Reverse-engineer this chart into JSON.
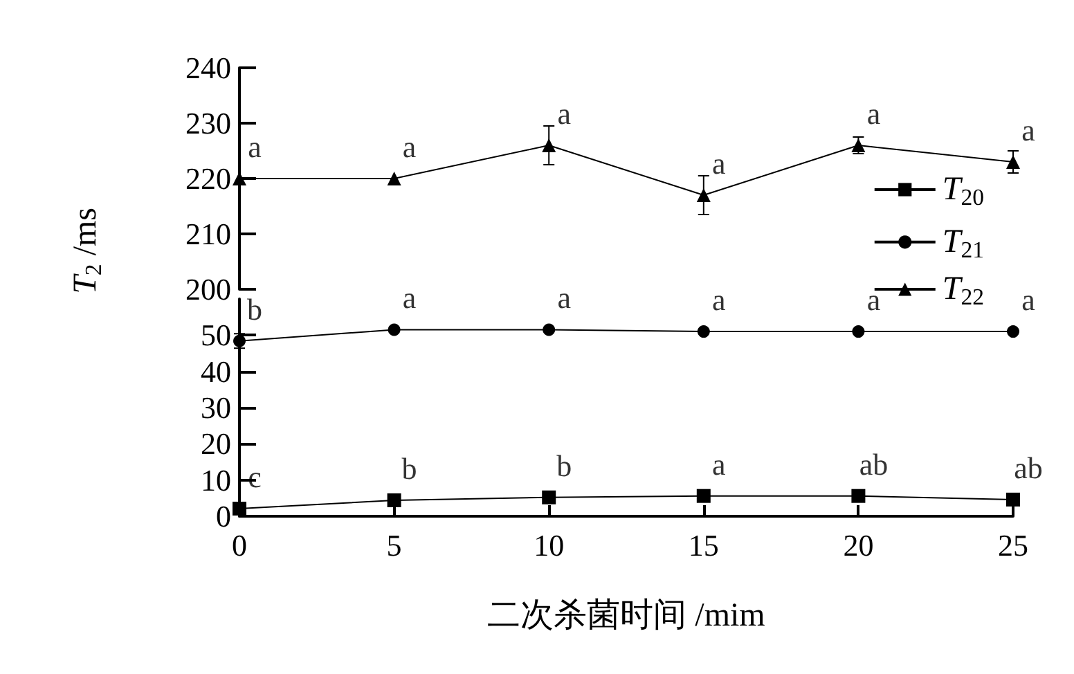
{
  "chart_data": [
    {
      "type": "line",
      "ylabel": "T$_{2}$ /ms",
      "x": [
        0,
        5,
        10,
        15,
        20,
        25
      ],
      "xlim": [
        0,
        25
      ],
      "ylim": [
        200,
        240
      ],
      "yticks": [
        200,
        210,
        220,
        230,
        240
      ],
      "tick_labels": "y",
      "legend": "right",
      "grid": false,
      "series": [
        {
          "name": "T$_{22}$",
          "color": "#000000",
          "marker": "triangle",
          "values": [
            220,
            220,
            226,
            217,
            226,
            223
          ],
          "errors": [
            null,
            null,
            3.5,
            3.5,
            1.5,
            2
          ]
        }
      ],
      "annotations": [
        {
          "text": "a",
          "x": 0,
          "y": 220
        },
        {
          "text": "a",
          "x": 5,
          "y": 220
        },
        {
          "text": "a",
          "x": 10,
          "y": 226
        },
        {
          "text": "a",
          "x": 15,
          "y": 217
        },
        {
          "text": "a",
          "x": 20,
          "y": 226
        },
        {
          "text": "a",
          "x": 25,
          "y": 223
        }
      ]
    },
    {
      "type": "line",
      "xlabel": "二次杀菌时间 /mim",
      "x": [
        0,
        5,
        10,
        15,
        20,
        25
      ],
      "xlim": [
        0,
        25
      ],
      "xticks": [
        0,
        5,
        10,
        15,
        20,
        25
      ],
      "ylim": [
        0,
        60
      ],
      "yticks": [
        0,
        10,
        20,
        30,
        40,
        50
      ],
      "legend": "top right",
      "grid": false,
      "series": [
        {
          "name": "T$_{20}$",
          "color": "#000000",
          "marker": "square",
          "values": [
            2.1,
            4.4,
            5.2,
            5.6,
            5.6,
            4.6
          ]
        },
        {
          "name": "T$_{21}$",
          "color": "#000000",
          "marker": "circle",
          "values": [
            48.4,
            51.5,
            51.5,
            51,
            51,
            51
          ],
          "errors": [
            2,
            null,
            null,
            null,
            null,
            null
          ]
        }
      ],
      "annotations": [
        {
          "text": "c",
          "x": 0,
          "y": 2.1
        },
        {
          "text": "b",
          "x": 5,
          "y": 4.4
        },
        {
          "text": "b",
          "x": 10,
          "y": 5.2
        },
        {
          "text": "a",
          "x": 15,
          "y": 5.6
        },
        {
          "text": "ab",
          "x": 20,
          "y": 5.6
        },
        {
          "text": "ab",
          "x": 25,
          "y": 4.6
        },
        {
          "text": "b",
          "x": 0,
          "y": 48.4
        },
        {
          "text": "a",
          "x": 5,
          "y": 51.5
        },
        {
          "text": "a",
          "x": 10,
          "y": 51.5
        },
        {
          "text": "a",
          "x": 15,
          "y": 51
        },
        {
          "text": "a",
          "x": 20,
          "y": 51
        },
        {
          "text": "a",
          "x": 25,
          "y": 51
        }
      ]
    }
  ]
}
